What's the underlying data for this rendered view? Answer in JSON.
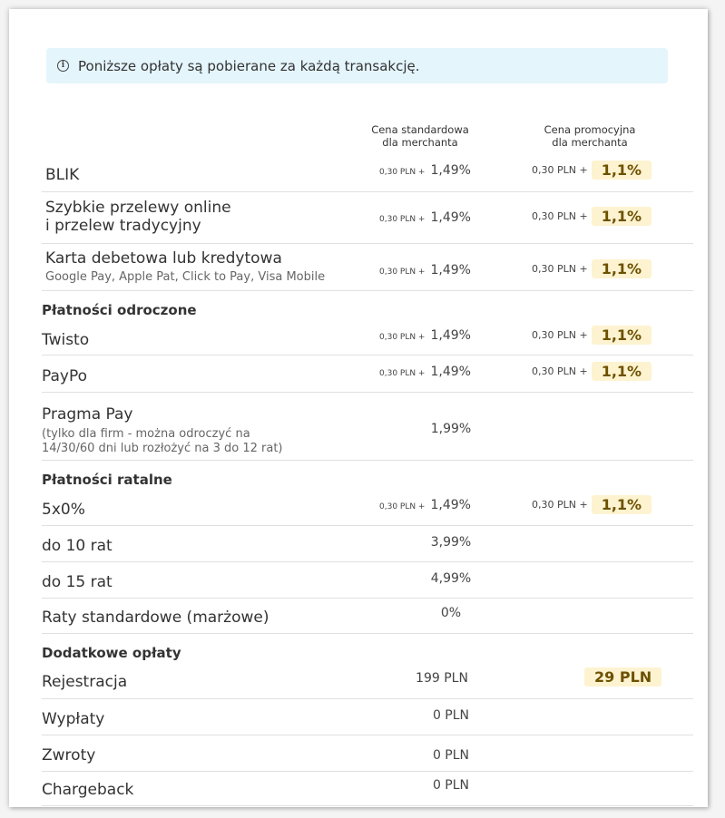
{
  "notice": {
    "icon": "info-icon",
    "text": "Poniższe opłaty są pobierane za każdą transakcję."
  },
  "columns": {
    "standard": [
      "Cena standardowa",
      "dla merchanta"
    ],
    "promo": [
      "Cena promocyjna",
      "dla merchanta"
    ]
  },
  "rows": {
    "blik": {
      "label": "BLIK",
      "std_fixed": "0,30 PLN +",
      "std_pct": "1,49%",
      "promo_fixed": "0,30 PLN +",
      "promo_pct": "1,1%"
    },
    "transfers": {
      "label_1": "Szybkie przelewy online",
      "label_2": "i przelew tradycyjny",
      "std_fixed": "0,30 PLN +",
      "std_pct": "1,49%",
      "promo_fixed": "0,30 PLN +",
      "promo_pct": "1,1%"
    },
    "card": {
      "label": "Karta debetowa lub kredytowa",
      "sub": "Google Pay, Apple Pat, Click to Pay, Visa Mobile",
      "std_fixed": "0,30 PLN +",
      "std_pct": "1,49%",
      "promo_fixed": "0,30 PLN +",
      "promo_pct": "1,1%"
    },
    "twisto": {
      "label": "Twisto",
      "std_fixed": "0,30 PLN +",
      "std_pct": "1,49%",
      "promo_fixed": "0,30 PLN +",
      "promo_pct": "1,1%"
    },
    "paypo": {
      "label": "PayPo",
      "std_fixed": "0,30 PLN +",
      "std_pct": "1,49%",
      "promo_fixed": "0,30 PLN +",
      "promo_pct": "1,1%"
    },
    "pragma": {
      "label": "Pragma Pay",
      "sub_1": "(tylko dla firm - można odroczyć na",
      "sub_2": "14/30/60 dni lub rozłożyć na 3 do 12 rat)",
      "std": "1,99%"
    },
    "five": {
      "label": "5x0%",
      "std_fixed": "0,30 PLN +",
      "std_pct": "1,49%",
      "promo_fixed": "0,30 PLN +",
      "promo_pct": "1,1%"
    },
    "ten": {
      "label": "do 10 rat",
      "std": "3,99%"
    },
    "fifteen": {
      "label": "do 15 rat",
      "std": "4,99%"
    },
    "standard_inst": {
      "label": "Raty standardowe (marżowe)",
      "std": "0%"
    },
    "registration": {
      "label": "Rejestracja",
      "std": "199 PLN",
      "promo": "29 PLN"
    },
    "payouts": {
      "label": "Wypłaty",
      "std": "0 PLN"
    },
    "refunds": {
      "label": "Zwroty",
      "std": "0 PLN"
    },
    "chargeback": {
      "label": "Chargeback",
      "std": "0 PLN"
    }
  },
  "sections": {
    "deferred": "Płatności odroczone",
    "installments": "Płatności ratalne",
    "extra": "Dodatkowe opłaty"
  },
  "colors": {
    "highlight_bg": "#fdf3d0",
    "highlight_text": "#6d5100",
    "notice_bg": "#e4f5fc"
  }
}
